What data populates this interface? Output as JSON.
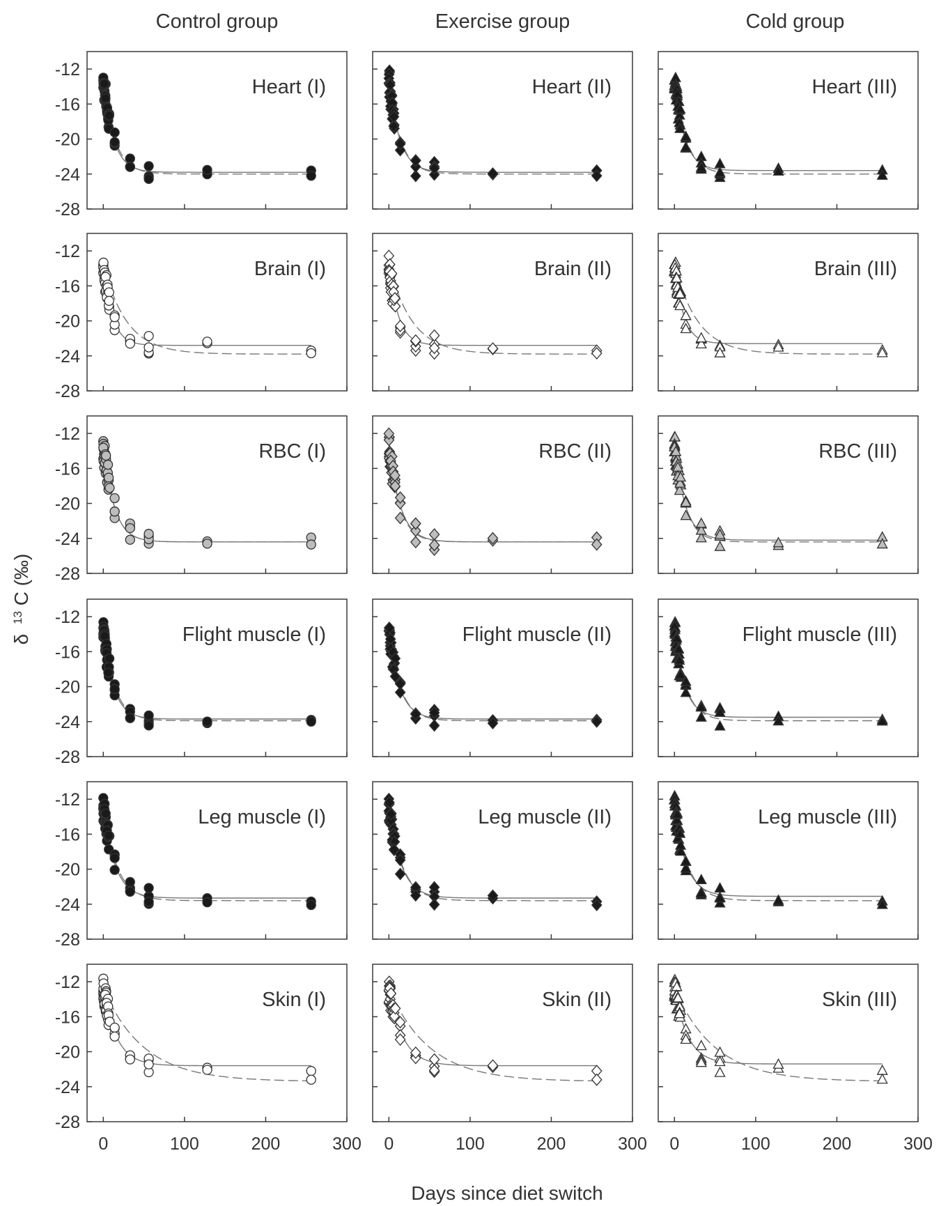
{
  "columns": [
    {
      "title": "Control group",
      "group": "I",
      "marker": "circle"
    },
    {
      "title": "Exercise group",
      "group": "II",
      "marker": "diamond"
    },
    {
      "title": "Cold group",
      "group": "III",
      "marker": "triangle"
    }
  ],
  "axes": {
    "xlabel": "Days since diet switch",
    "ylabel_delta": "δ",
    "ylabel_sup": "13",
    "ylabel_rest": "C  (‰)",
    "xticks": [
      0,
      100,
      200,
      300
    ],
    "yticks": [
      -12,
      -16,
      -20,
      -24,
      -28
    ],
    "xlim": [
      -20,
      300
    ],
    "ylim": [
      -28,
      -10
    ]
  },
  "style": {
    "black_fill": "#1a1a1a",
    "gray_fill": "#bdbdbd",
    "open_fill": "#ffffff",
    "marker_stroke": "#333333",
    "solid_line": "#777777",
    "dashed_line": "#777777"
  },
  "chart_data": [
    {
      "type": "scatter",
      "tissue": "Heart",
      "fill": "black",
      "plateau": -23.8,
      "start": -13.2,
      "rate": 0.08,
      "dashed_plateau": -24.0,
      "dashed_rate": 0.07,
      "scatter_days": [
        0,
        1,
        2,
        3,
        5,
        7,
        14,
        33,
        56,
        128,
        256
      ],
      "final_values": [
        -23.6,
        -24.2
      ]
    },
    {
      "type": "scatter",
      "tissue": "Brain",
      "fill": "open",
      "plateau": -22.8,
      "start": -13.5,
      "rate": 0.09,
      "dashed_plateau": -23.8,
      "dashed_rate": 0.035,
      "scatter_days": [
        0,
        1,
        2,
        3,
        5,
        7,
        14,
        33,
        56,
        128,
        256
      ],
      "final_values": [
        -23.4,
        -23.7
      ]
    },
    {
      "type": "scatter",
      "tissue": "RBC",
      "fill": "gray",
      "plateau": -24.4,
      "start": -13.2,
      "rate": 0.075,
      "dashed_plateau": -24.4,
      "dashed_rate": 0.075,
      "scatter_days": [
        0,
        1,
        2,
        3,
        5,
        7,
        14,
        33,
        56,
        128,
        256
      ],
      "final_values": [
        -23.9,
        -24.7
      ]
    },
    {
      "type": "scatter",
      "tissue": "Flight muscle",
      "fill": "black",
      "plateau": -23.7,
      "start": -13.5,
      "rate": 0.08,
      "dashed_plateau": -23.9,
      "dashed_rate": 0.07,
      "scatter_days": [
        0,
        1,
        2,
        3,
        5,
        7,
        14,
        33,
        56,
        128,
        256
      ],
      "final_values": [
        -23.8,
        -24.0
      ]
    },
    {
      "type": "scatter",
      "tissue": "Leg muscle",
      "fill": "black",
      "plateau": -23.3,
      "start": -12.8,
      "rate": 0.07,
      "dashed_plateau": -23.6,
      "dashed_rate": 0.06,
      "scatter_days": [
        0,
        1,
        2,
        3,
        5,
        7,
        14,
        33,
        56,
        128,
        256
      ],
      "final_values": [
        -23.7,
        -24.1
      ]
    },
    {
      "type": "scatter",
      "tissue": "Skin",
      "fill": "open",
      "plateau": -21.6,
      "start": -12.8,
      "rate": 0.06,
      "dashed_plateau": -23.4,
      "dashed_rate": 0.02,
      "scatter_days": [
        0,
        1,
        2,
        3,
        5,
        7,
        14,
        33,
        56,
        128,
        256
      ],
      "final_values": [
        -22.2,
        -23.2
      ]
    }
  ],
  "panel_labels": [
    [
      "Heart (I)",
      "Heart (II)",
      "Heart (III)"
    ],
    [
      "Brain (I)",
      "Brain (II)",
      "Brain (III)"
    ],
    [
      "RBC (I)",
      "RBC (II)",
      "RBC (III)"
    ],
    [
      "Flight muscle (I)",
      "Flight muscle (II)",
      "Flight muscle (III)"
    ],
    [
      "Leg muscle (I)",
      "Leg muscle (II)",
      "Leg muscle (III)"
    ],
    [
      "Skin (I)",
      "Skin (II)",
      "Skin (III)"
    ]
  ]
}
